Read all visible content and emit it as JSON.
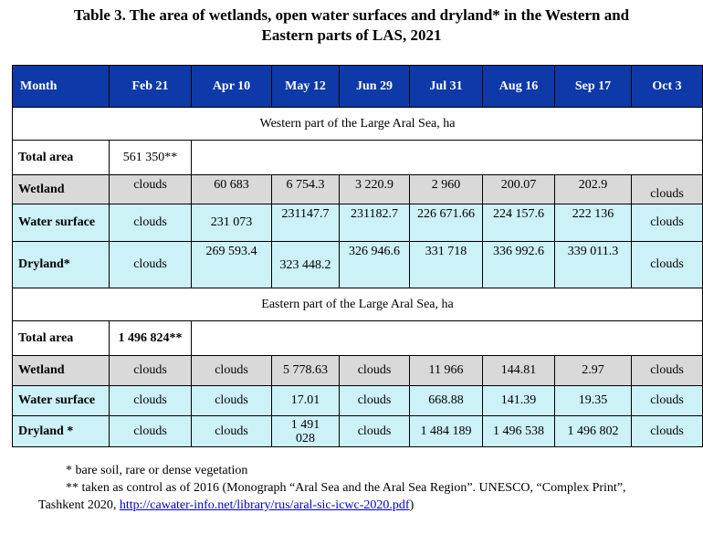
{
  "title": {
    "line1": "Table 3. The area of wetlands, open water surfaces and dryland* in the Western and",
    "line2": "Eastern parts of LAS, 2021"
  },
  "columns": [
    "Month",
    "Feb 21",
    "Apr 10",
    "May 12",
    "Jun 29",
    "Jul 31",
    "Aug 16",
    "Sep 17",
    "Oct 3"
  ],
  "western": {
    "section_title": "Western part of the Large Aral Sea, ha",
    "total_label": "Total area",
    "total_value": "561 350**",
    "rows": [
      {
        "label": "Wetland",
        "values": [
          "clouds",
          "60 683",
          "6 754.3",
          "3 220.9",
          "2 960",
          "200.07",
          "202.9",
          "clouds"
        ]
      },
      {
        "label": "Water surface",
        "values": [
          "clouds",
          "231 073",
          "231147.7",
          "231182.7",
          "226 671.66",
          "224 157.6",
          "222 136",
          "clouds"
        ]
      },
      {
        "label": "Dryland*",
        "values": [
          "clouds",
          "269 593.4",
          "323 448.2",
          "326 946.6",
          "331 718",
          "336 992.6",
          "339 011.3",
          "clouds"
        ]
      }
    ]
  },
  "eastern": {
    "section_title": "Eastern part of the Large Aral Sea, ha",
    "total_label": "Total area",
    "total_value": "1 496 824**",
    "rows": [
      {
        "label": "Wetland",
        "values": [
          "clouds",
          "clouds",
          "5 778.63",
          "clouds",
          "11 966",
          "144.81",
          "2.97",
          "clouds"
        ]
      },
      {
        "label": "Water surface",
        "values": [
          "clouds",
          "clouds",
          "17.01",
          "clouds",
          "668.88",
          "141.39",
          "19.35",
          "clouds"
        ]
      },
      {
        "label": "Dryland *",
        "values": [
          "clouds",
          "clouds",
          "1 491 028",
          "clouds",
          "1 484 189",
          "1 496 538",
          "1 496 802",
          "clouds"
        ]
      }
    ]
  },
  "notes": {
    "note1": "* bare soil, rare or dense vegetation",
    "note2": "** taken as control as of 2016 (Monograph “Aral Sea and the Aral Sea Region”. UNESCO, “Complex Print”,",
    "note3_prefix": "Tashkent 2020, ",
    "link": "http://cawater-info.net/library/rus/aral-sic-icwc-2020.pdf",
    "note3_suffix": ")"
  }
}
